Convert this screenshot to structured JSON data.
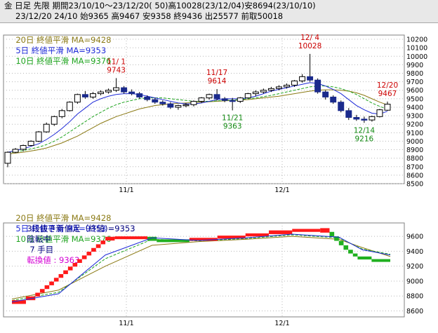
{
  "header": {
    "line1": "金 日足 先限 期間23/10/10～23/12/20( 50)高10028(23/12/04)安8694(23/10/10)",
    "line2": "23/12/20 24/10 始9365 高9467 安9358 終9436 出25577 前取50018"
  },
  "legend": {
    "ma20": "20日 終値平滑 MA=9428",
    "ma5": "5日 終値平滑 MA=9353",
    "ma10": "10日 終値平滑 MA=9376"
  },
  "renko_info": {
    "text1": "3段抜き新値足（終値)=9353",
    "text2": "陰転中",
    "text3": "7 手目",
    "text4": "転換値 : 9363"
  },
  "colors": {
    "ma20": "#8b7a14",
    "ma5": "#1e2ad8",
    "ma10": "#1fa41f",
    "up_candle": "#ffffff",
    "down_candle": "#1a2a8c",
    "up_block": "#ff1a1a",
    "down_block": "#20b020",
    "annot_red": "#cc0000",
    "annot_green": "#138a13",
    "renko_magenta": "#d400d4"
  },
  "chart_data": [
    {
      "type": "candlestick",
      "title": "",
      "x_ticks": [
        "11/1",
        "12/1"
      ],
      "yticks": [
        8500,
        8600,
        8700,
        8800,
        8900,
        9000,
        9100,
        9200,
        9300,
        9400,
        9500,
        9600,
        9700,
        9800,
        9900,
        10000,
        10100,
        10200
      ],
      "ylim": [
        8500,
        10250
      ],
      "ohlc": [
        [
          8740,
          8880,
          8694,
          8870
        ],
        [
          8870,
          8920,
          8860,
          8905
        ],
        [
          8905,
          8960,
          8880,
          8950
        ],
        [
          8950,
          9010,
          8940,
          9000
        ],
        [
          9000,
          9120,
          8990,
          9110
        ],
        [
          9110,
          9220,
          9100,
          9200
        ],
        [
          9200,
          9300,
          9180,
          9290
        ],
        [
          9290,
          9380,
          9270,
          9360
        ],
        [
          9360,
          9470,
          9350,
          9460
        ],
        [
          9460,
          9560,
          9440,
          9550
        ],
        [
          9550,
          9590,
          9500,
          9520
        ],
        [
          9520,
          9580,
          9500,
          9560
        ],
        [
          9560,
          9600,
          9540,
          9580
        ],
        [
          9580,
          9620,
          9560,
          9600
        ],
        [
          9600,
          9743,
          9580,
          9630
        ],
        [
          9630,
          9650,
          9560,
          9580
        ],
        [
          9580,
          9610,
          9540,
          9560
        ],
        [
          9560,
          9580,
          9500,
          9520
        ],
        [
          9520,
          9540,
          9470,
          9490
        ],
        [
          9490,
          9510,
          9440,
          9460
        ],
        [
          9460,
          9480,
          9420,
          9440
        ],
        [
          9440,
          9460,
          9380,
          9400
        ],
        [
          9400,
          9430,
          9370,
          9420
        ],
        [
          9420,
          9450,
          9400,
          9430
        ],
        [
          9430,
          9480,
          9410,
          9470
        ],
        [
          9470,
          9520,
          9450,
          9510
        ],
        [
          9510,
          9560,
          9490,
          9550
        ],
        [
          9550,
          9614,
          9480,
          9500
        ],
        [
          9500,
          9520,
          9460,
          9480
        ],
        [
          9480,
          9510,
          9363,
          9470
        ],
        [
          9470,
          9520,
          9450,
          9510
        ],
        [
          9510,
          9570,
          9500,
          9560
        ],
        [
          9560,
          9600,
          9530,
          9580
        ],
        [
          9580,
          9620,
          9560,
          9600
        ],
        [
          9600,
          9640,
          9580,
          9620
        ],
        [
          9620,
          9660,
          9600,
          9640
        ],
        [
          9640,
          9680,
          9620,
          9660
        ],
        [
          9660,
          9720,
          9640,
          9710
        ],
        [
          9710,
          9790,
          9690,
          9760
        ],
        [
          9760,
          10028,
          9700,
          9720
        ],
        [
          9720,
          9740,
          9560,
          9580
        ],
        [
          9580,
          9600,
          9490,
          9520
        ],
        [
          9520,
          9540,
          9440,
          9460
        ],
        [
          9460,
          9480,
          9340,
          9360
        ],
        [
          9360,
          9390,
          9250,
          9280
        ],
        [
          9280,
          9310,
          9240,
          9260
        ],
        [
          9260,
          9290,
          9216,
          9250
        ],
        [
          9250,
          9300,
          9230,
          9290
        ],
        [
          9290,
          9380,
          9280,
          9370
        ],
        [
          9365,
          9467,
          9358,
          9436
        ]
      ],
      "ma5": [
        8870,
        8890,
        8910,
        8940,
        8970,
        9020,
        9080,
        9150,
        9230,
        9320,
        9390,
        9460,
        9500,
        9530,
        9550,
        9560,
        9560,
        9550,
        9530,
        9510,
        9490,
        9470,
        9450,
        9440,
        9440,
        9450,
        9470,
        9490,
        9500,
        9500,
        9500,
        9510,
        9530,
        9560,
        9590,
        9610,
        9630,
        9650,
        9670,
        9690,
        9680,
        9650,
        9610,
        9560,
        9490,
        9420,
        9370,
        9330,
        9320,
        9353
      ],
      "ma10": [
        8860,
        8875,
        8890,
        8910,
        8930,
        8960,
        9000,
        9050,
        9110,
        9170,
        9230,
        9290,
        9340,
        9390,
        9430,
        9460,
        9480,
        9500,
        9510,
        9510,
        9510,
        9500,
        9490,
        9480,
        9470,
        9470,
        9470,
        9475,
        9480,
        9485,
        9490,
        9500,
        9510,
        9525,
        9540,
        9560,
        9580,
        9600,
        9620,
        9640,
        9650,
        9650,
        9640,
        9620,
        9590,
        9550,
        9500,
        9450,
        9410,
        9376
      ],
      "ma20": [
        8850,
        8860,
        8870,
        8885,
        8900,
        8920,
        8950,
        8980,
        9020,
        9060,
        9110,
        9160,
        9210,
        9250,
        9290,
        9320,
        9350,
        9380,
        9400,
        9420,
        9430,
        9440,
        9445,
        9450,
        9455,
        9460,
        9465,
        9470,
        9475,
        9480,
        9485,
        9490,
        9500,
        9510,
        9520,
        9530,
        9545,
        9560,
        9575,
        9590,
        9600,
        9605,
        9605,
        9600,
        9590,
        9570,
        9540,
        9500,
        9460,
        9428
      ],
      "annotations": [
        {
          "date": "11/ 1",
          "value": "9743",
          "color": "red",
          "bar": 14,
          "side": "above"
        },
        {
          "date": "11/17",
          "value": "9614",
          "color": "red",
          "bar": 27,
          "side": "above"
        },
        {
          "date": "11/21",
          "value": "9363",
          "color": "green",
          "bar": 29,
          "side": "below"
        },
        {
          "date": "12/ 4",
          "value": "10028",
          "color": "red",
          "bar": 39,
          "side": "above"
        },
        {
          "date": "12/14",
          "value": "9216",
          "color": "green",
          "bar": 46,
          "side": "below"
        },
        {
          "date": "12/20",
          "value": "9467",
          "color": "red",
          "bar": 49,
          "side": "above"
        }
      ]
    },
    {
      "type": "renko",
      "x_ticks": [
        "11/1",
        "12/1"
      ],
      "yticks": [
        8600,
        8800,
        9000,
        9200,
        9400,
        9600
      ],
      "ylim": [
        8520,
        9780
      ],
      "block_height": 50,
      "blocks": [
        {
          "low": 8694,
          "high": 8744,
          "dir": "up",
          "x0": 0,
          "x1": 3
        },
        {
          "low": 8744,
          "high": 8794,
          "dir": "up",
          "x0": 3,
          "x1": 5
        },
        {
          "low": 8794,
          "high": 8844,
          "dir": "up",
          "x0": 5,
          "x1": 6
        },
        {
          "low": 8844,
          "high": 8894,
          "dir": "up",
          "x0": 6,
          "x1": 7
        },
        {
          "low": 8894,
          "high": 8944,
          "dir": "up",
          "x0": 7,
          "x1": 8
        },
        {
          "low": 8944,
          "high": 8994,
          "dir": "up",
          "x0": 8,
          "x1": 9
        },
        {
          "low": 8994,
          "high": 9044,
          "dir": "up",
          "x0": 9,
          "x1": 10
        },
        {
          "low": 9044,
          "high": 9094,
          "dir": "up",
          "x0": 10,
          "x1": 11
        },
        {
          "low": 9094,
          "high": 9144,
          "dir": "up",
          "x0": 11,
          "x1": 12
        },
        {
          "low": 9144,
          "high": 9194,
          "dir": "up",
          "x0": 12,
          "x1": 13
        },
        {
          "low": 9194,
          "high": 9244,
          "dir": "up",
          "x0": 13,
          "x1": 14
        },
        {
          "low": 9244,
          "high": 9294,
          "dir": "up",
          "x0": 14,
          "x1": 15
        },
        {
          "low": 9294,
          "high": 9344,
          "dir": "up",
          "x0": 15,
          "x1": 16
        },
        {
          "low": 9344,
          "high": 9394,
          "dir": "up",
          "x0": 16,
          "x1": 17
        },
        {
          "low": 9394,
          "high": 9444,
          "dir": "up",
          "x0": 17,
          "x1": 18
        },
        {
          "low": 9444,
          "high": 9494,
          "dir": "up",
          "x0": 18,
          "x1": 19
        },
        {
          "low": 9494,
          "high": 9544,
          "dir": "up",
          "x0": 19,
          "x1": 20
        },
        {
          "low": 9544,
          "high": 9594,
          "dir": "up",
          "x0": 20,
          "x1": 22
        },
        {
          "low": 9594,
          "high": 9600,
          "dir": "up",
          "x0": 22,
          "x1": 29
        },
        {
          "low": 9540,
          "high": 9594,
          "dir": "down",
          "x0": 29,
          "x1": 31
        },
        {
          "low": 9530,
          "high": 9560,
          "dir": "down",
          "x0": 31,
          "x1": 38
        },
        {
          "low": 9540,
          "high": 9580,
          "dir": "up",
          "x0": 38,
          "x1": 44
        },
        {
          "low": 9570,
          "high": 9610,
          "dir": "up",
          "x0": 44,
          "x1": 50
        },
        {
          "low": 9600,
          "high": 9640,
          "dir": "up",
          "x0": 50,
          "x1": 55
        },
        {
          "low": 9630,
          "high": 9680,
          "dir": "up",
          "x0": 55,
          "x1": 60
        },
        {
          "low": 9660,
          "high": 9700,
          "dir": "up",
          "x0": 60,
          "x1": 66
        },
        {
          "low": 9650,
          "high": 9710,
          "dir": "up",
          "x0": 66,
          "x1": 68
        },
        {
          "low": 9600,
          "high": 9660,
          "dir": "down",
          "x0": 68,
          "x1": 69
        },
        {
          "low": 9540,
          "high": 9600,
          "dir": "down",
          "x0": 69,
          "x1": 70
        },
        {
          "low": 9480,
          "high": 9540,
          "dir": "down",
          "x0": 70,
          "x1": 71
        },
        {
          "low": 9420,
          "high": 9480,
          "dir": "down",
          "x0": 71,
          "x1": 72
        },
        {
          "low": 9370,
          "high": 9420,
          "dir": "down",
          "x0": 72,
          "x1": 73
        },
        {
          "low": 9330,
          "high": 9370,
          "dir": "down",
          "x0": 73,
          "x1": 74
        },
        {
          "low": 9290,
          "high": 9330,
          "dir": "down",
          "x0": 74,
          "x1": 77
        },
        {
          "low": 9270,
          "high": 9295,
          "dir": "down",
          "x0": 77,
          "x1": 81
        }
      ],
      "ma20_x": [
        0,
        10,
        20,
        30,
        40,
        50,
        60,
        70,
        75,
        81
      ],
      "ma20": [
        8760,
        8880,
        9200,
        9480,
        9530,
        9560,
        9600,
        9560,
        9450,
        9330
      ],
      "ma10_x": [
        0,
        10,
        20,
        30,
        40,
        50,
        60,
        70,
        75,
        81
      ],
      "ma10": [
        8740,
        8850,
        9300,
        9560,
        9540,
        9570,
        9620,
        9580,
        9430,
        9360
      ],
      "ma5_x": [
        0,
        10,
        20,
        30,
        40,
        50,
        60,
        70,
        75,
        81
      ],
      "ma5": [
        8720,
        8830,
        9350,
        9580,
        9545,
        9580,
        9630,
        9590,
        9420,
        9350
      ]
    }
  ]
}
